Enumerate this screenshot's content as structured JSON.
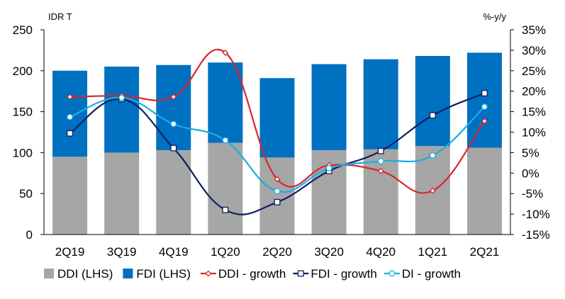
{
  "chart_data": {
    "type": "bar",
    "categories": [
      "2Q19",
      "3Q19",
      "4Q19",
      "1Q20",
      "2Q20",
      "3Q20",
      "4Q20",
      "1Q21",
      "2Q21"
    ],
    "left_axis": {
      "unit_label": "IDR T",
      "ylim": [
        0,
        250
      ],
      "ticks": [
        0,
        50,
        100,
        150,
        200,
        250
      ],
      "tick_labels": [
        "0",
        "50",
        "100",
        "150",
        "200",
        "250"
      ]
    },
    "right_axis": {
      "unit_label": "%-y/y",
      "ylim": [
        -15,
        35
      ],
      "ticks": [
        -15,
        -10,
        -5,
        0,
        5,
        10,
        15,
        20,
        25,
        30,
        35
      ],
      "tick_labels": [
        "-15%",
        "-10%",
        "-5%",
        "0%",
        "5%",
        "10%",
        "15%",
        "20%",
        "25%",
        "30%",
        "35%"
      ]
    },
    "bar_series": [
      {
        "name": "DDI (LHS)",
        "color": "#a6a6a6",
        "values": [
          95,
          100,
          103,
          112,
          94,
          103,
          104,
          108,
          106
        ]
      },
      {
        "name": "FDI (LHS)",
        "color": "#0070c0",
        "values": [
          105,
          105,
          104,
          98,
          97,
          105,
          110,
          110,
          116
        ]
      }
    ],
    "line_series": [
      {
        "name": "DDI - growth",
        "color": "#d9262c",
        "marker": "diamond",
        "values": [
          18.6,
          18.9,
          18.6,
          29.4,
          -1.5,
          1.9,
          0.5,
          -4.3,
          12.7
        ]
      },
      {
        "name": "FDI - growth",
        "color": "#0d2160",
        "marker": "square",
        "values": [
          9.7,
          18.1,
          6.1,
          -9.0,
          -7.1,
          0.5,
          5.4,
          14.1,
          19.5
        ]
      },
      {
        "name": "DI - growth",
        "color": "#1aade3",
        "marker": "circle",
        "values": [
          13.7,
          18.4,
          12.0,
          8.0,
          -4.4,
          1.2,
          2.9,
          4.3,
          16.2
        ]
      }
    ],
    "legend_position": "bottom",
    "grid": false
  }
}
